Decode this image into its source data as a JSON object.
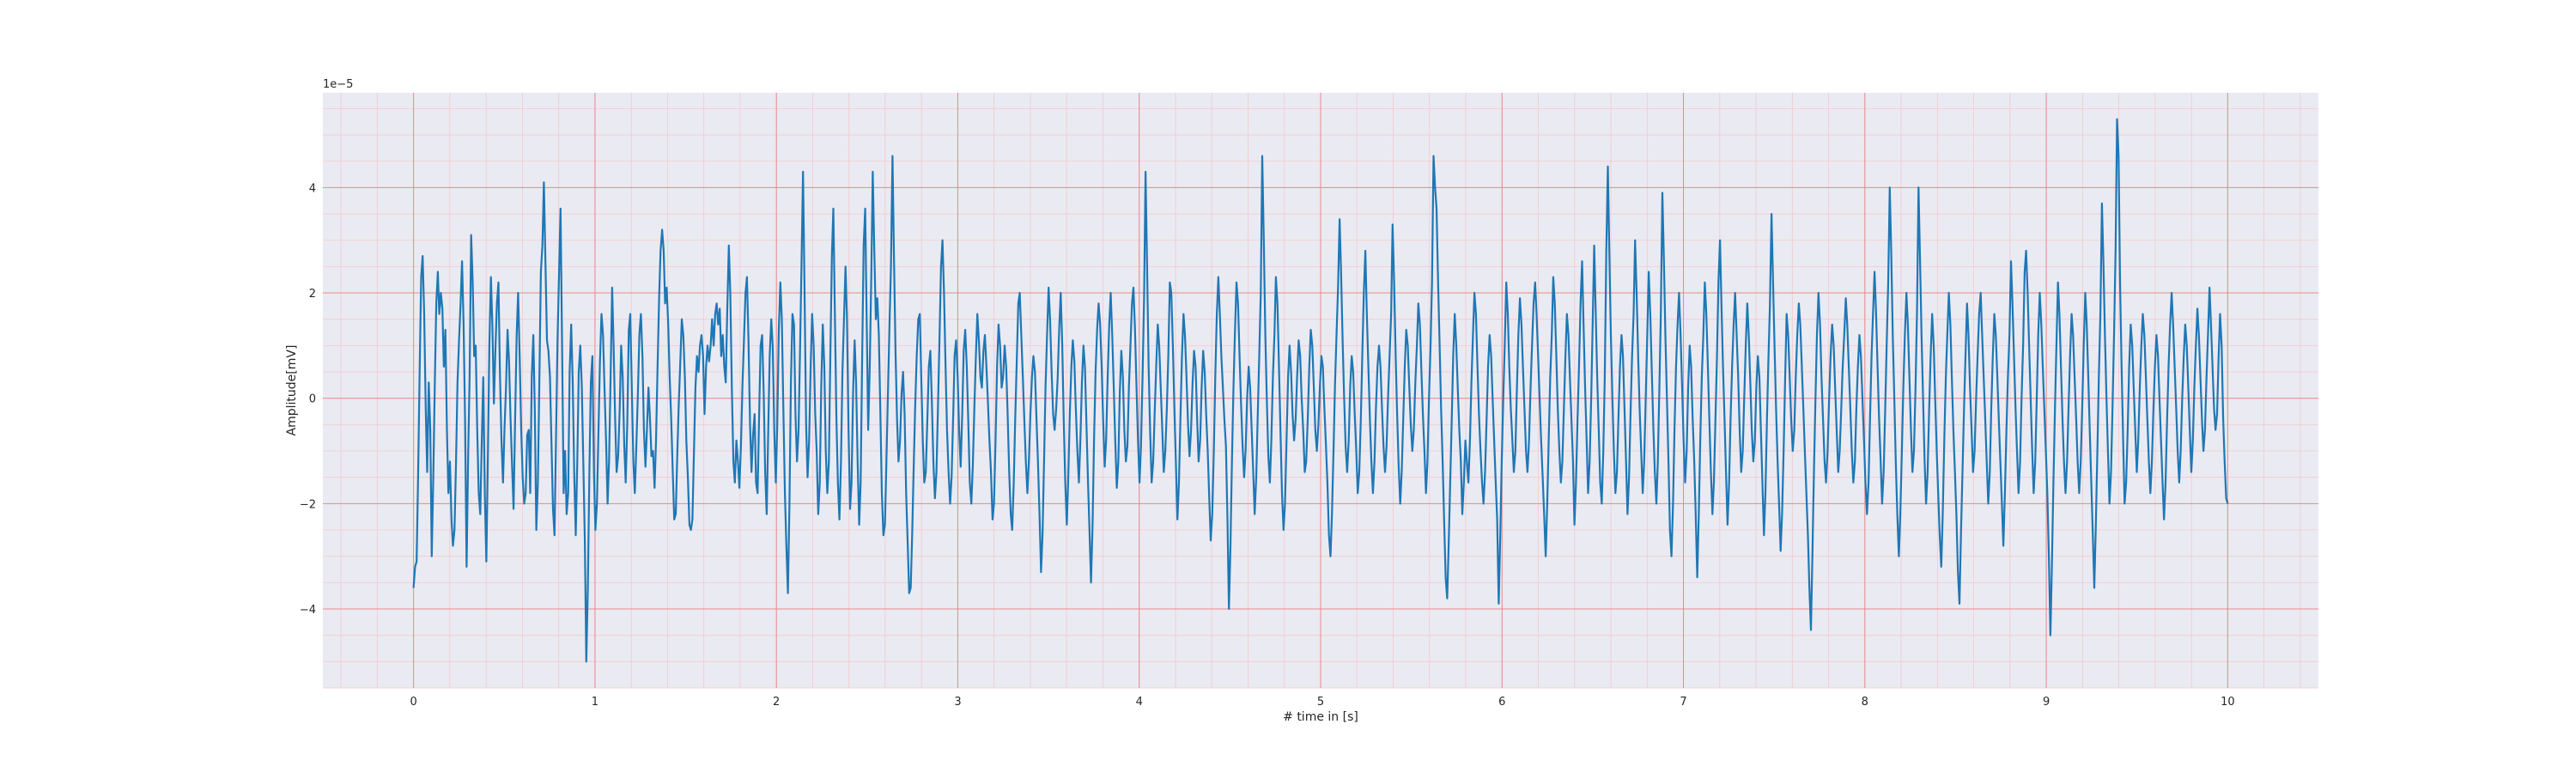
{
  "chart_data": {
    "type": "line",
    "title": "",
    "xlabel": "# time in [s]",
    "ylabel": "Amplitude[mV]",
    "y_offset_text": "1e−5",
    "y_multiplier": 1e-05,
    "xlim": [
      -0.5,
      10.5
    ],
    "ylim": [
      -5.5,
      5.8
    ],
    "xticks": [
      0,
      1,
      2,
      3,
      4,
      5,
      6,
      7,
      8,
      9,
      10
    ],
    "xtick_labels": [
      "0",
      "1",
      "2",
      "3",
      "4",
      "5",
      "6",
      "7",
      "8",
      "9",
      "10"
    ],
    "yticks": [
      -4,
      -2,
      0,
      2,
      4
    ],
    "ytick_labels": [
      "−4",
      "−2",
      "0",
      "2",
      "4"
    ],
    "grid": {
      "major": true,
      "minor": true,
      "major_color": "#e8898b",
      "minor_color": "#f3c9cc"
    },
    "background": "#eaeaf2",
    "series": [
      {
        "color": "#1f77b4",
        "x_start": 0,
        "x_end": 10,
        "values": [
          -3.6,
          -3.2,
          -3.1,
          -1.5,
          0.5,
          2.3,
          2.7,
          1.6,
          -0.2,
          -1.4,
          0.3,
          -0.6,
          -3.0,
          -1.5,
          0.2,
          1.8,
          2.4,
          1.6,
          2.0,
          1.7,
          0.6,
          1.3,
          -0.6,
          -1.8,
          -1.2,
          -2.3,
          -2.8,
          -2.5,
          -1.2,
          0.3,
          1.1,
          1.8,
          2.6,
          1.4,
          -0.4,
          -3.2,
          -1.1,
          0.4,
          3.1,
          2.2,
          0.8,
          1.0,
          -0.6,
          -1.8,
          -2.2,
          -0.8,
          0.4,
          -1.8,
          -3.1,
          -1.2,
          1.0,
          2.3,
          1.4,
          -0.1,
          0.9,
          1.8,
          2.2,
          0.5,
          -0.8,
          -1.6,
          -0.6,
          0.2,
          1.3,
          0.7,
          -0.4,
          -1.3,
          -2.1,
          -0.4,
          1.2,
          2.0,
          0.8,
          -0.6,
          -1.5,
          -2.0,
          -1.8,
          -0.7,
          -0.6,
          -1.8,
          0.4,
          1.2,
          -0.2,
          -2.5,
          -1.6,
          0.3,
          2.4,
          2.9,
          4.1,
          2.6,
          1.1,
          0.9,
          0.4,
          -0.9,
          -2.1,
          -2.6,
          -0.8,
          1.1,
          2.4,
          3.6,
          1.0,
          -1.8,
          -1.0,
          -2.2,
          -1.8,
          0.5,
          1.4,
          0.3,
          -1.4,
          -2.6,
          -1.2,
          0.5,
          1.0,
          0.2,
          -1.2,
          -2.7,
          -5.0,
          -3.6,
          -1.4,
          0.3,
          0.8,
          -1.4,
          -2.5,
          -2.0,
          -0.6,
          0.7,
          1.6,
          1.2,
          0.2,
          -0.8,
          -2.0,
          -1.2,
          0.4,
          2.1,
          1.0,
          -0.4,
          -1.4,
          -1.1,
          -0.2,
          1.0,
          0.4,
          -0.9,
          -1.6,
          -0.5,
          1.3,
          1.6,
          0.2,
          -1.2,
          -1.8,
          -0.9,
          0.1,
          1.2,
          1.6,
          0.8,
          -0.6,
          -1.3,
          -0.6,
          0.2,
          -0.4,
          -1.1,
          -1.0,
          -1.7,
          -0.8,
          0.6,
          1.9,
          2.8,
          3.2,
          2.8,
          1.8,
          2.1,
          1.4,
          0.4,
          -0.4,
          -1.4,
          -2.3,
          -2.2,
          -1.1,
          -0.1,
          0.7,
          1.5,
          1.2,
          0.4,
          -0.8,
          -1.5,
          -2.4,
          -2.5,
          -2.3,
          -1.0,
          0.2,
          0.8,
          0.5,
          1.0,
          1.2,
          0.8,
          -0.3,
          0.6,
          1.0,
          0.7,
          1.0,
          1.5,
          1.0,
          1.6,
          1.8,
          1.4,
          1.7,
          0.8,
          1.2,
          0.6,
          0.3,
          1.7,
          2.9,
          2.0,
          0.2,
          -1.2,
          -1.6,
          -0.8,
          -1.2,
          -1.7,
          -0.9,
          0.2,
          1.1,
          2.0,
          2.3,
          1.1,
          -0.5,
          -1.4,
          -0.7,
          -0.3,
          -1.6,
          -1.8,
          -0.3,
          1.0,
          1.2,
          0.1,
          -1.4,
          -2.2,
          -0.6,
          0.8,
          1.5,
          1.0,
          -0.6,
          -1.6,
          -0.5,
          1.3,
          2.2,
          1.5,
          -0.2,
          -1.8,
          -2.8,
          -3.7,
          -2.0,
          0.3,
          1.6,
          1.4,
          -0.3,
          -1.2,
          -0.6,
          0.9,
          2.6,
          4.3,
          2.0,
          -0.5,
          -1.5,
          -0.8,
          0.6,
          1.6,
          1.0,
          -0.3,
          -1.0,
          -2.2,
          -1.6,
          0.2,
          1.4,
          0.6,
          -1.0,
          -1.8,
          -1.2,
          0.8,
          2.7,
          3.6,
          1.6,
          -0.4,
          -1.6,
          -2.3,
          -1.2,
          0.5,
          1.5,
          2.5,
          1.5,
          -0.6,
          -2.1,
          -1.6,
          0.1,
          1.1,
          0.3,
          -1.2,
          -2.4,
          -1.6,
          0.8,
          2.9,
          3.6,
          1.4,
          -0.6,
          0.6,
          2.3,
          4.3,
          2.8,
          1.5,
          1.9,
          1.2,
          -0.3,
          -1.8,
          -2.6,
          -2.4,
          -1.2,
          0.1,
          1.4,
          2.5,
          4.6,
          2.7,
          0.9,
          -0.4,
          -1.2,
          -0.8,
          0.1,
          0.5,
          -0.3,
          -1.8,
          -2.7,
          -3.7,
          -3.6,
          -2.6,
          -1.3,
          -0.1,
          0.8,
          1.5,
          1.6,
          0.4,
          -0.8,
          -1.6,
          -1.4,
          -0.4,
          0.6,
          0.9,
          -0.1,
          -1.2,
          -1.9,
          -1.4,
          -0.2,
          1.1,
          2.5,
          3.0,
          2.0,
          0.6,
          -0.6,
          -1.4,
          -2.0,
          -1.5,
          -0.4,
          0.8,
          1.1,
          0.4,
          -0.6,
          -1.3,
          -0.3,
          0.9,
          1.3,
          0.6,
          -0.4,
          -1.6,
          -2.0,
          -1.3,
          -0.2,
          0.8,
          1.6,
          1.1,
          0.4,
          0.2,
          0.9,
          1.2,
          0.6,
          -0.1,
          -0.8,
          -1.4,
          -2.3,
          -2.0,
          -0.8,
          0.6,
          1.4,
          1.0,
          0.2,
          0.4,
          1.0,
          0.6,
          -0.3,
          -1.4,
          -2.2,
          -2.5,
          -1.6,
          -0.4,
          0.7,
          1.8,
          2.0,
          1.2,
          0.4,
          -0.4,
          -1.2,
          -1.8,
          -1.2,
          -0.3,
          0.4,
          0.8,
          0.5,
          -0.4,
          -1.2,
          -2.2,
          -3.3,
          -2.6,
          -1.2,
          0.2,
          1.2,
          2.1,
          1.5,
          0.5,
          -0.3,
          -0.6,
          -0.2,
          0.4,
          1.3,
          2.0,
          1.0,
          -0.4,
          -1.6,
          -2.4,
          -1.5,
          -0.3,
          0.6,
          1.1,
          0.7,
          -0.2,
          -1.0,
          -1.6,
          -0.8,
          0.3,
          1.0,
          0.6,
          -0.5,
          -1.6,
          -2.5,
          -3.5,
          -2.4,
          -0.8,
          0.5,
          1.3,
          1.8,
          1.4,
          0.6,
          -0.4,
          -1.3,
          -0.8,
          0.4,
          1.4,
          2.0,
          1.2,
          0.2,
          -0.8,
          -1.7,
          -1.2,
          0.1,
          0.9,
          0.4,
          -0.6,
          -1.2,
          -0.9,
          0.2,
          1.0,
          1.8,
          2.1,
          1.3,
          0.2,
          -0.8,
          -1.6,
          -0.9,
          0.4,
          1.9,
          4.3,
          2.5,
          0.6,
          -0.6,
          -1.6,
          -1.2,
          -0.3,
          0.6,
          1.4,
          1.0,
          0.2,
          -0.6,
          -1.4,
          -1.0,
          -0.2,
          0.8,
          2.2,
          2.0,
          1.0,
          -0.2,
          -1.2,
          -2.3,
          -1.6,
          -0.4,
          0.8,
          1.6,
          1.2,
          0.4,
          -0.5,
          -1.1,
          -0.6,
          0.3,
          0.9,
          0.6,
          -0.4,
          -1.2,
          -0.8,
          0.2,
          0.9,
          0.5,
          -0.3,
          -1.0,
          -1.9,
          -2.7,
          -2.2,
          -1.0,
          0.4,
          1.6,
          2.3,
          1.6,
          0.8,
          0.2,
          -0.4,
          -0.9,
          -2.3,
          -4.0,
          -2.8,
          -1.2,
          0.2,
          1.3,
          2.2,
          1.8,
          0.8,
          -0.1,
          -0.9,
          -1.5,
          -1.0,
          0.0,
          0.6,
          0.2,
          -0.6,
          -1.4,
          -2.2,
          -1.5,
          -0.3,
          0.8,
          2.0,
          4.6,
          3.0,
          1.2,
          0.0,
          -1.1,
          -1.6,
          -0.8,
          0.4,
          1.2,
          2.3,
          1.8,
          0.6,
          -0.6,
          -1.8,
          -2.5,
          -2.0,
          -0.8,
          0.4,
          1.0,
          0.5,
          -0.3,
          -0.8,
          -0.4,
          0.4,
          1.1,
          0.8,
          0.0,
          -0.6,
          -1.4,
          -1.2,
          -0.4,
          0.6,
          1.3,
          1.0,
          0.2,
          -0.6,
          -1.0,
          -0.5,
          0.2,
          0.8,
          0.6,
          -0.2,
          -0.9,
          -1.6,
          -2.6,
          -3.0,
          -2.2,
          -1.0,
          0.3,
          1.2,
          2.1,
          3.4,
          2.4,
          1.1,
          0.0,
          -0.9,
          -1.4,
          -0.8,
          0.2,
          0.8,
          0.5,
          -0.3,
          -1.0,
          -1.8,
          -1.4,
          -0.4,
          0.8,
          2.0,
          2.8,
          1.6,
          0.6,
          -0.4,
          -1.2,
          -1.8,
          -1.2,
          -0.2,
          0.6,
          1.0,
          0.6,
          -0.2,
          -0.9,
          -1.4,
          -0.9,
          0.0,
          0.8,
          1.6,
          3.3,
          2.2,
          0.8,
          -0.3,
          -1.3,
          -2.0,
          -1.4,
          -0.4,
          0.6,
          1.3,
          1.0,
          0.2,
          -0.5,
          -1.0,
          -0.6,
          0.3,
          1.0,
          1.8,
          1.4,
          0.5,
          -0.3,
          -1.0,
          -1.8,
          -1.2,
          0.0,
          1.0,
          2.2,
          4.6,
          4.0,
          3.6,
          2.2,
          1.0,
          -0.2,
          -1.2,
          -2.3,
          -3.4,
          -3.8,
          -2.8,
          -1.6,
          -0.4,
          0.8,
          1.6,
          1.0,
          0.2,
          -0.6,
          -1.2,
          -2.2,
          -1.6,
          -0.8,
          -1.2,
          -1.6,
          -0.8,
          0.3,
          1.2,
          2.0,
          1.6,
          0.6,
          -0.3,
          -1.0,
          -1.6,
          -2.0,
          -1.4,
          -0.4,
          0.6,
          1.2,
          0.8,
          0.0,
          -0.8,
          -1.6,
          -2.3,
          -3.9,
          -2.6,
          -1.2,
          0.0,
          1.0,
          2.2,
          1.6,
          0.6,
          -0.2,
          -0.8,
          -1.4,
          -1.0,
          0.2,
          1.2,
          1.9,
          1.4,
          0.6,
          -0.2,
          -1.0,
          -1.4,
          -0.8,
          0.2,
          1.0,
          1.8,
          2.2,
          1.6,
          0.8,
          0.0,
          -0.8,
          -1.5,
          -2.2,
          -3.0,
          -2.0,
          -0.8,
          0.4,
          1.2,
          2.3,
          1.8,
          0.8,
          -0.2,
          -1.0,
          -1.6,
          -1.2,
          -0.2,
          0.8,
          1.6,
          1.2,
          0.4,
          -0.4,
          -1.2,
          -2.4,
          -1.6,
          -0.4,
          0.6,
          1.8,
          2.6,
          1.4,
          0.2,
          -0.8,
          -1.8,
          -1.2,
          0.0,
          1.4,
          2.9,
          1.6,
          0.4,
          -0.6,
          -1.6,
          -2.0,
          -1.0,
          0.4,
          2.8,
          4.4,
          2.8,
          1.2,
          0.0,
          -1.0,
          -1.8,
          -1.4,
          -0.4,
          0.6,
          1.2,
          0.8,
          -0.2,
          -1.2,
          -2.2,
          -1.5,
          -0.3,
          0.8,
          1.6,
          3.0,
          2.0,
          0.8,
          -0.2,
          -1.0,
          -1.8,
          -1.2,
          0.0,
          1.2,
          2.4,
          1.6,
          0.5,
          -0.5,
          -1.4,
          -2.0,
          -1.2,
          0.2,
          1.6,
          3.9,
          2.6,
          1.2,
          0.0,
          -1.2,
          -2.5,
          -3.0,
          -2.0,
          -0.6,
          0.6,
          1.4,
          2.0,
          1.2,
          0.2,
          -0.8,
          -1.6,
          -1.0,
          0.2,
          1.0,
          0.6,
          -0.4,
          -1.2,
          -2.2,
          -3.4,
          -2.2,
          -0.8,
          0.4,
          1.2,
          2.2,
          1.6,
          0.6,
          -0.4,
          -1.4,
          -2.2,
          -1.6,
          -0.4,
          0.8,
          2.2,
          3.0,
          1.8,
          0.6,
          -0.4,
          -1.4,
          -2.4,
          -1.6,
          -0.4,
          0.6,
          1.4,
          2.0,
          1.2,
          0.4,
          -0.6,
          -1.4,
          -1.0,
          0.0,
          1.0,
          1.8,
          1.2,
          0.3,
          -0.6,
          -1.2,
          -0.8,
          0.2,
          0.8,
          0.4,
          -0.6,
          -1.6,
          -2.6,
          -1.8,
          -0.4,
          0.8,
          1.8,
          3.5,
          2.2,
          1.0,
          -0.2,
          -1.2,
          -2.0,
          -2.9,
          -2.2,
          -1.0,
          0.4,
          1.6,
          1.2,
          0.4,
          -0.4,
          -1.0,
          -0.6,
          0.4,
          1.2,
          1.8,
          1.4,
          0.6,
          -0.2,
          -1.0,
          -1.8,
          -2.6,
          -3.6,
          -4.4,
          -3.0,
          -1.4,
          0.0,
          1.2,
          2.0,
          1.4,
          0.4,
          -0.4,
          -1.2,
          -1.6,
          -1.0,
          0.0,
          0.8,
          1.4,
          1.0,
          0.2,
          -0.6,
          -1.4,
          -1.0,
          -0.2,
          0.6,
          1.2,
          1.9,
          1.4,
          0.6,
          -0.2,
          -1.0,
          -1.6,
          -1.2,
          -0.2,
          0.6,
          1.2,
          0.8,
          0.0,
          -0.8,
          -1.6,
          -2.2,
          -1.6,
          -0.4,
          0.8,
          1.6,
          2.4,
          1.6,
          0.6,
          -0.4,
          -1.2,
          -2.0,
          -1.4,
          -0.2,
          1.0,
          2.2,
          4.0,
          2.8,
          1.2,
          0.0,
          -1.2,
          -2.2,
          -3.0,
          -2.2,
          -1.0,
          0.2,
          1.2,
          2.0,
          1.4,
          0.4,
          -0.6,
          -1.4,
          -1.0,
          0.2,
          1.6,
          4.0,
          2.6,
          1.2,
          0.0,
          -1.2,
          -2.0,
          -1.4,
          -0.2,
          0.8,
          1.6,
          1.0,
          0.0,
          -1.0,
          -1.8,
          -2.6,
          -3.2,
          -2.2,
          -0.8,
          0.4,
          1.2,
          2.0,
          1.4,
          0.4,
          -0.6,
          -1.4,
          -2.2,
          -3.3,
          -3.9,
          -2.6,
          -1.4,
          -0.2,
          0.8,
          1.8,
          1.2,
          0.2,
          -0.6,
          -1.4,
          -1.0,
          0.0,
          0.8,
          1.6,
          2.0,
          1.2,
          0.4,
          -0.4,
          -1.2,
          -2.0,
          -1.4,
          -0.2,
          0.8,
          1.6,
          1.2,
          0.4,
          -0.4,
          -1.2,
          -2.0,
          -2.8,
          -1.8,
          -0.6,
          0.4,
          1.2,
          2.6,
          1.8,
          0.8,
          -0.2,
          -1.0,
          -1.8,
          -1.2,
          0.0,
          1.0,
          2.4,
          2.8,
          2.0,
          1.0,
          0.0,
          -1.0,
          -1.8,
          -1.2,
          0.0,
          1.2,
          2.0,
          1.4,
          0.6,
          -0.2,
          -1.0,
          -1.8,
          -3.0,
          -4.5,
          -3.2,
          -1.6,
          -0.2,
          1.0,
          2.2,
          1.6,
          0.6,
          -0.4,
          -1.2,
          -1.8,
          -1.2,
          -0.2,
          0.8,
          1.6,
          1.2,
          0.4,
          -0.4,
          -1.2,
          -1.8,
          -1.2,
          -0.2,
          1.0,
          2.0,
          1.4,
          0.4,
          -0.6,
          -1.6,
          -2.6,
          -3.6,
          -2.4,
          -1.0,
          0.4,
          1.6,
          3.7,
          2.6,
          1.2,
          0.0,
          -1.0,
          -2.0,
          -1.4,
          -0.2,
          1.2,
          2.8,
          5.3,
          4.6,
          2.2,
          0.6,
          -0.8,
          -2.0,
          -1.6,
          -0.6,
          0.6,
          1.4,
          1.0,
          0.2,
          -0.6,
          -1.4,
          -0.8,
          0.2,
          1.0,
          1.6,
          1.2,
          0.4,
          -0.4,
          -1.2,
          -1.8,
          -1.2,
          -0.2,
          0.6,
          1.2,
          0.8,
          0.0,
          -0.8,
          -1.6,
          -2.3,
          -1.6,
          -0.4,
          0.6,
          1.4,
          2.0,
          1.4,
          0.6,
          -0.2,
          -1.0,
          -1.6,
          -1.0,
          0.0,
          0.8,
          1.4,
          1.0,
          0.2,
          -0.6,
          -1.4,
          -0.8,
          0.2,
          1.0,
          1.7,
          1.2,
          0.4,
          -0.4,
          -1.0,
          -0.6,
          0.4,
          1.2,
          2.1,
          1.4,
          0.6,
          -0.2,
          -0.6,
          -0.3,
          0.8,
          1.6,
          1.0,
          -0.4,
          -1.2,
          -1.9,
          -2.0
        ]
      }
    ]
  }
}
